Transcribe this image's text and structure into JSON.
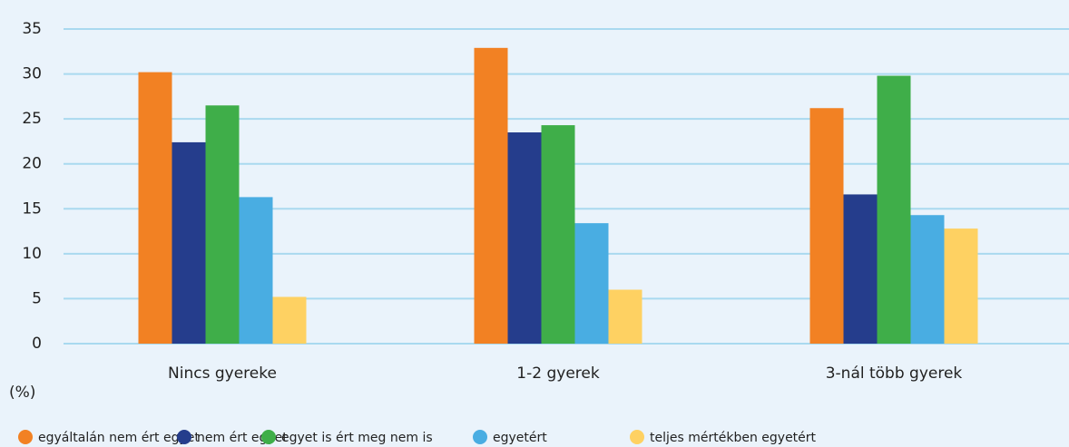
{
  "chart_data": {
    "type": "bar",
    "y_label": "(%)",
    "categories": [
      "Nincs gyereke",
      "1-2 gyerek",
      "3-nál több gyerek"
    ],
    "series": [
      {
        "name": "egyáltalán nem ért egyet",
        "color": "#f28123",
        "values": [
          30.2,
          32.9,
          26.2
        ]
      },
      {
        "name": "nem ért egyet",
        "color": "#253d8c",
        "values": [
          22.4,
          23.5,
          16.6
        ]
      },
      {
        "name": "egyet is ért meg nem is",
        "color": "#3fae49",
        "values": [
          26.5,
          24.3,
          29.8
        ]
      },
      {
        "name": "egyetért",
        "color": "#49ade2",
        "values": [
          16.3,
          13.4,
          14.3
        ]
      },
      {
        "name": "teljes mértékben egyetért",
        "color": "#fed162",
        "values": [
          5.2,
          6.0,
          12.8
        ]
      }
    ],
    "ylim": [
      0,
      35
    ],
    "yticks": [
      0,
      5,
      10,
      15,
      20,
      25,
      30,
      35
    ],
    "grid": true,
    "legend": "bottom"
  }
}
